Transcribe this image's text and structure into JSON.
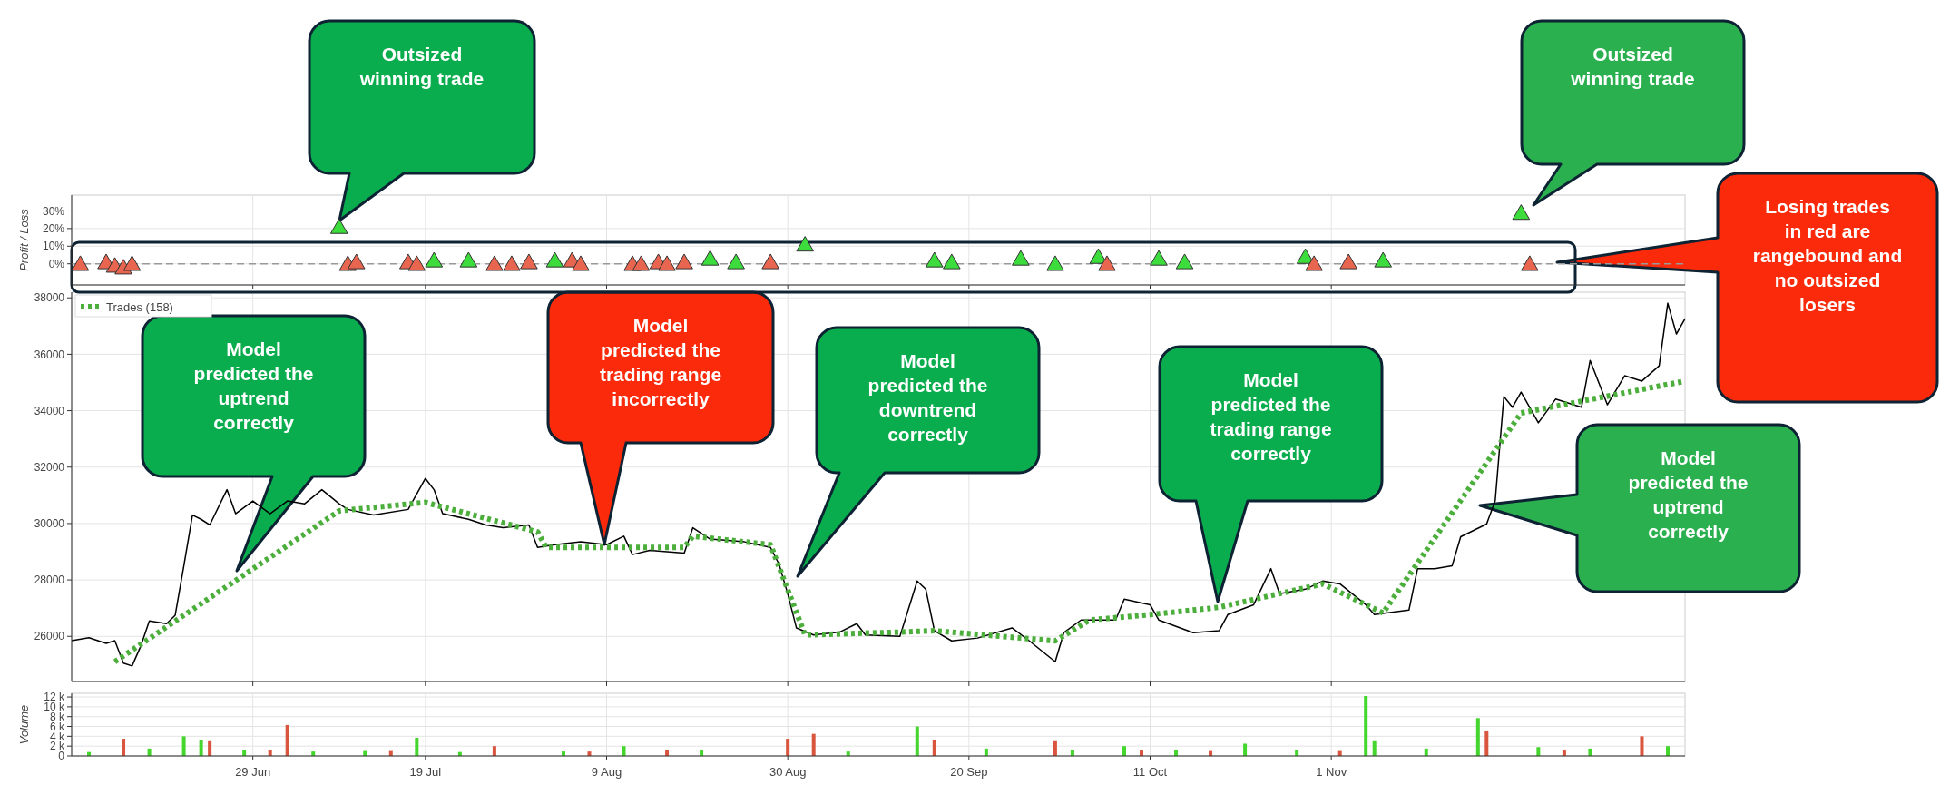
{
  "chart_data": [
    {
      "type": "scatter",
      "ylabel": "Profit / Loss",
      "xlim": [
        "--06-08",
        "--12-12"
      ],
      "xticks": [
        {
          "value": "--06-29",
          "label": null
        },
        {
          "value": "--07-19",
          "label": null
        },
        {
          "value": "--08-09",
          "label": null
        },
        {
          "value": "--08-30",
          "label": null
        },
        {
          "value": "--09-20",
          "label": null
        },
        {
          "value": "--10-11",
          "label": null
        },
        {
          "value": "--11-01",
          "label": null
        }
      ],
      "ylim": [
        -12,
        39
      ],
      "yticks": [
        {
          "value": 0,
          "label": "0%"
        },
        {
          "value": 10,
          "label": "10%"
        },
        {
          "value": 20,
          "label": "20%"
        },
        {
          "value": 30,
          "label": "30%"
        }
      ],
      "tick_labels": "y",
      "grid": true,
      "marker": "triangle",
      "ref_lines": [
        {
          "axis": "y",
          "value": 0,
          "color": "#999999",
          "line_style": "dashed"
        }
      ],
      "series": [
        {
          "color": "#3ddc3d",
          "x": [
            "--07-09",
            "--07-20",
            "--07-24",
            "--08-03",
            "--08-21",
            "--08-24",
            "--09-01",
            "--09-16",
            "--09-18",
            "--09-26",
            "--09-30",
            "--10-05",
            "--10-12",
            "--10-15",
            "--10-29",
            "--11-07",
            "--11-23"
          ],
          "values": [
            20,
            1,
            1,
            1,
            2,
            0,
            10,
            1,
            0,
            2,
            -1,
            3,
            2,
            0,
            3,
            1,
            28
          ]
        },
        {
          "color": "#e8654f",
          "x": [
            "--06-09",
            "--06-12",
            "--06-13",
            "--06-14",
            "--06-15",
            "--07-10",
            "--07-11",
            "--07-17",
            "--07-18",
            "--07-27",
            "--07-29",
            "--07-31",
            "--08-05",
            "--08-06",
            "--08-12",
            "--08-13",
            "--08-15",
            "--08-16",
            "--08-18",
            "--08-28",
            "--10-06",
            "--10-30",
            "--11-03",
            "--11-24"
          ],
          "values": [
            -1,
            0,
            -2,
            -3,
            -1,
            -1,
            0,
            0,
            -1,
            -1,
            -1,
            0,
            1,
            -1,
            -1,
            -1,
            0,
            -1,
            0,
            0,
            -1,
            -1,
            0,
            -1
          ]
        }
      ],
      "annotations": [
        "Outsized winning trade",
        "Outsized winning trade",
        "Losing trades in red are rangebound and no outsized losers"
      ]
    },
    {
      "type": "line",
      "xlim": [
        "--06-08",
        "--12-12"
      ],
      "xticks": [
        {
          "value": "--06-29",
          "label": null
        },
        {
          "value": "--07-19",
          "label": null
        },
        {
          "value": "--08-09",
          "label": null
        },
        {
          "value": "--08-30",
          "label": null
        },
        {
          "value": "--09-20",
          "label": null
        },
        {
          "value": "--10-11",
          "label": null
        },
        {
          "value": "--11-01",
          "label": null
        }
      ],
      "ylim": [
        24400,
        38200
      ],
      "yticks": [
        26000,
        28000,
        30000,
        32000,
        34000,
        36000,
        38000
      ],
      "tick_labels": "y",
      "grid": true,
      "legend": "top left",
      "series": [
        {
          "color": "#000000",
          "x": [
            "--06-08",
            "--06-10",
            "--06-12",
            "--06-13",
            "--06-14",
            "--06-15",
            "--06-16",
            "--06-17",
            "--06-19",
            "--06-20",
            "--06-21",
            "--06-22",
            "--06-23",
            "--06-24",
            "--06-26",
            "--06-27",
            "--06-29",
            "--07-01",
            "--07-03",
            "--07-05",
            "--07-07",
            "--07-09",
            "--07-10",
            "--07-13",
            "--07-17",
            "--07-19",
            "--07-20",
            "--07-21",
            "--07-24",
            "--07-26",
            "--07-28",
            "--07-31",
            "--08-01",
            "--08-03",
            "--08-06",
            "--08-09",
            "--08-11",
            "--08-12",
            "--08-14",
            "--08-18",
            "--08-19",
            "--08-21",
            "--08-25",
            "--08-28",
            "--08-29",
            "--08-30",
            "--08-31",
            "--09-02",
            "--09-05",
            "--09-07",
            "--09-08",
            "--09-12",
            "--09-14",
            "--09-15",
            "--09-16",
            "--09-18",
            "--09-21",
            "--09-25",
            "--09-27",
            "--09-30",
            "--10-01",
            "--10-03",
            "--10-07",
            "--10-08",
            "--10-11",
            "--10-12",
            "--10-16",
            "--10-19",
            "--10-20",
            "--10-23",
            "--10-25",
            "--10-26",
            "--10-29",
            "--10-31",
            "--11-02",
            "--11-05",
            "--11-06",
            "--11-10",
            "--11-11",
            "--11-13",
            "--11-15",
            "--11-16",
            "--11-19",
            "--11-20",
            "--11-21",
            "--11-22",
            "--11-23",
            "--11-25",
            "--11-27",
            "--11-30",
            "--12-01",
            "--12-03",
            "--12-05",
            "--12-07",
            "--12-09",
            "--12-10",
            "--12-11",
            "--12-12"
          ],
          "values": [
            25850,
            25950,
            25750,
            25850,
            25050,
            24950,
            25650,
            26550,
            26450,
            26750,
            28500,
            30300,
            30150,
            29950,
            31200,
            30350,
            30800,
            30350,
            30800,
            30700,
            31200,
            30700,
            30500,
            30300,
            30500,
            31600,
            31200,
            30350,
            30150,
            29950,
            29850,
            29950,
            29150,
            29250,
            29350,
            29250,
            29550,
            28900,
            29050,
            28950,
            29850,
            29450,
            29350,
            29150,
            28550,
            27500,
            26300,
            26050,
            26150,
            26450,
            26050,
            26000,
            27960,
            27670,
            26200,
            25840,
            25940,
            26300,
            25840,
            25100,
            26130,
            26580,
            26580,
            27320,
            27120,
            26580,
            26130,
            26200,
            26770,
            27120,
            28400,
            27510,
            27670,
            27960,
            27860,
            27120,
            26770,
            26930,
            28400,
            28400,
            28500,
            29530,
            29980,
            30810,
            34500,
            34120,
            34660,
            33570,
            34410,
            34120,
            35780,
            34210,
            35240,
            35050,
            35590,
            37810,
            36720,
            37260
          ]
        },
        {
          "name": "Trades (158)",
          "color": "#4caf3c",
          "line_style": "dotted",
          "x": [
            "--06-13",
            "--07-09",
            "--07-19",
            "--08-01",
            "--08-02",
            "--08-18",
            "--08-19",
            "--08-28",
            "--09-01",
            "--09-12",
            "--09-16",
            "--09-30",
            "--10-04",
            "--10-11",
            "--10-19",
            "--10-31",
            "--11-07",
            "--11-23",
            "--12-12"
          ],
          "values": [
            25100,
            30450,
            30750,
            29700,
            29150,
            29150,
            29550,
            29250,
            26050,
            26150,
            26200,
            25840,
            26580,
            26770,
            27030,
            27860,
            26830,
            33920,
            35050
          ]
        }
      ],
      "annotations": [
        "Model predicted the uptrend correctly",
        "Model predicted the trading range incorrectly",
        "Model predicted the downtrend correctly",
        "Model predicted the trading range correctly",
        "Model predicted the uptrend correctly"
      ]
    },
    {
      "type": "bar",
      "ylabel": "Volume",
      "xlim": [
        "--06-08",
        "--12-12"
      ],
      "xticks": [
        {
          "value": "--06-29",
          "label": "29 Jun"
        },
        {
          "value": "--07-19",
          "label": "19 Jul"
        },
        {
          "value": "--08-09",
          "label": "9 Aug"
        },
        {
          "value": "--08-30",
          "label": "30 Aug"
        },
        {
          "value": "--09-20",
          "label": "20 Sep"
        },
        {
          "value": "--10-11",
          "label": "11 Oct"
        },
        {
          "value": "--11-01",
          "label": "1 Nov"
        }
      ],
      "ylim": [
        0,
        12750
      ],
      "yticks": [
        {
          "value": 0,
          "label": "0"
        },
        {
          "value": 2000,
          "label": "2 k"
        },
        {
          "value": 4000,
          "label": "4 k"
        },
        {
          "value": 6000,
          "label": "6 k"
        },
        {
          "value": 8000,
          "label": "8 k"
        },
        {
          "value": 10000,
          "label": "10 k"
        },
        {
          "value": 12000,
          "label": "12 k"
        }
      ],
      "grid": true,
      "series": [
        {
          "color": "#44d62c",
          "x": [
            "--06-10",
            "--06-17",
            "--06-21",
            "--06-23",
            "--06-28",
            "--07-06",
            "--07-12",
            "--07-18",
            "--07-23",
            "--08-04",
            "--08-11",
            "--08-20",
            "--09-06",
            "--09-14",
            "--09-22",
            "--10-02",
            "--10-08",
            "--10-14",
            "--10-22",
            "--10-28",
            "--11-05",
            "--11-06",
            "--11-12",
            "--11-18",
            "--11-25",
            "--12-01",
            "--12-10"
          ],
          "values": [
            800,
            1500,
            4000,
            3200,
            1200,
            900,
            1000,
            3700,
            800,
            900,
            2000,
            1100,
            900,
            6000,
            1500,
            1200,
            2000,
            1300,
            2500,
            1200,
            12200,
            3000,
            1500,
            7700,
            1800,
            1500,
            2000
          ]
        },
        {
          "color": "#d9553e",
          "x": [
            "--06-14",
            "--06-24",
            "--07-01",
            "--07-03",
            "--07-15",
            "--07-27",
            "--08-07",
            "--08-16",
            "--08-30",
            "--09-02",
            "--09-16",
            "--09-30",
            "--10-10",
            "--10-18",
            "--11-02",
            "--11-19",
            "--11-28",
            "--12-07"
          ],
          "values": [
            3500,
            3000,
            1200,
            6300,
            1000,
            2000,
            900,
            1200,
            3500,
            4500,
            3300,
            3000,
            1100,
            1000,
            1000,
            5000,
            1300,
            4000
          ]
        }
      ]
    }
  ]
}
